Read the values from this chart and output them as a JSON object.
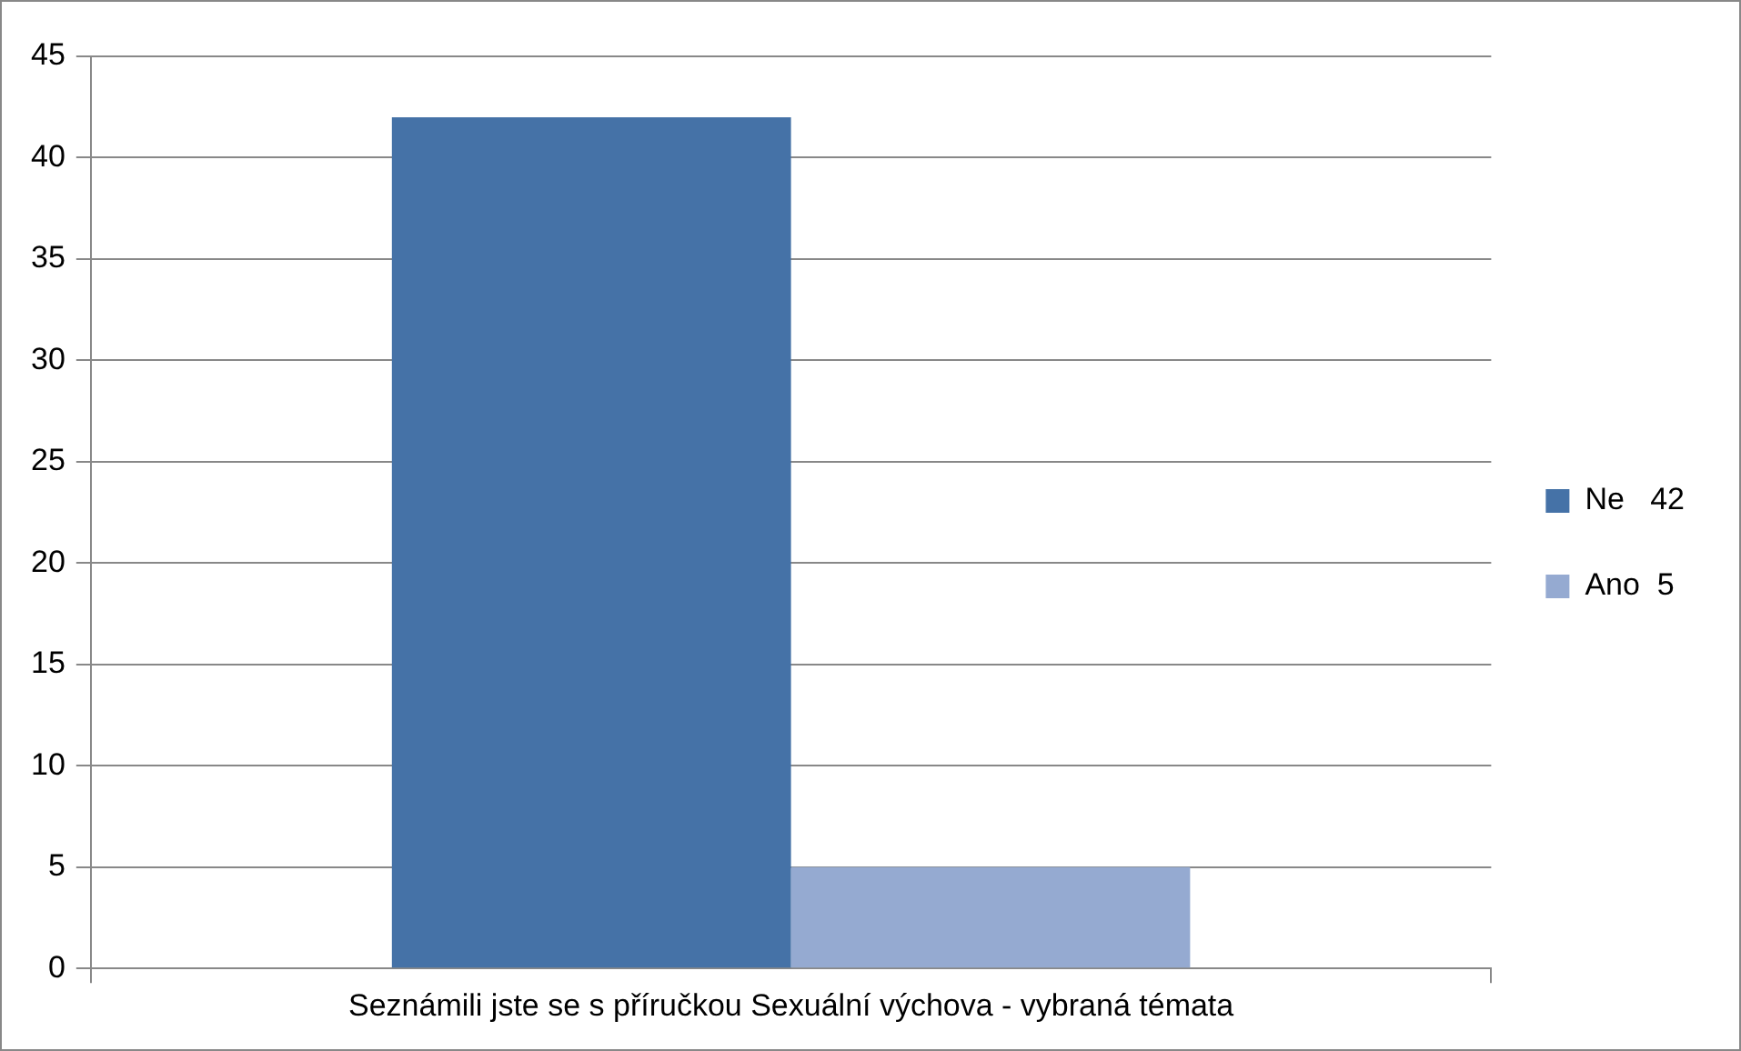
{
  "chart_data": {
    "type": "bar",
    "categories": [
      "Seznámili jste se s příručkou Sexuální výchova - vybraná témata"
    ],
    "series": [
      {
        "name": "Ne   42",
        "color": "#4572a7",
        "values": [
          42
        ]
      },
      {
        "name": "Ano  5",
        "color": "#95aad1",
        "values": [
          5
        ]
      }
    ],
    "ylim": [
      0,
      45
    ],
    "yticks": [
      0,
      5,
      10,
      15,
      20,
      25,
      30,
      35,
      40,
      45
    ],
    "grid": "y",
    "legend": "right"
  }
}
